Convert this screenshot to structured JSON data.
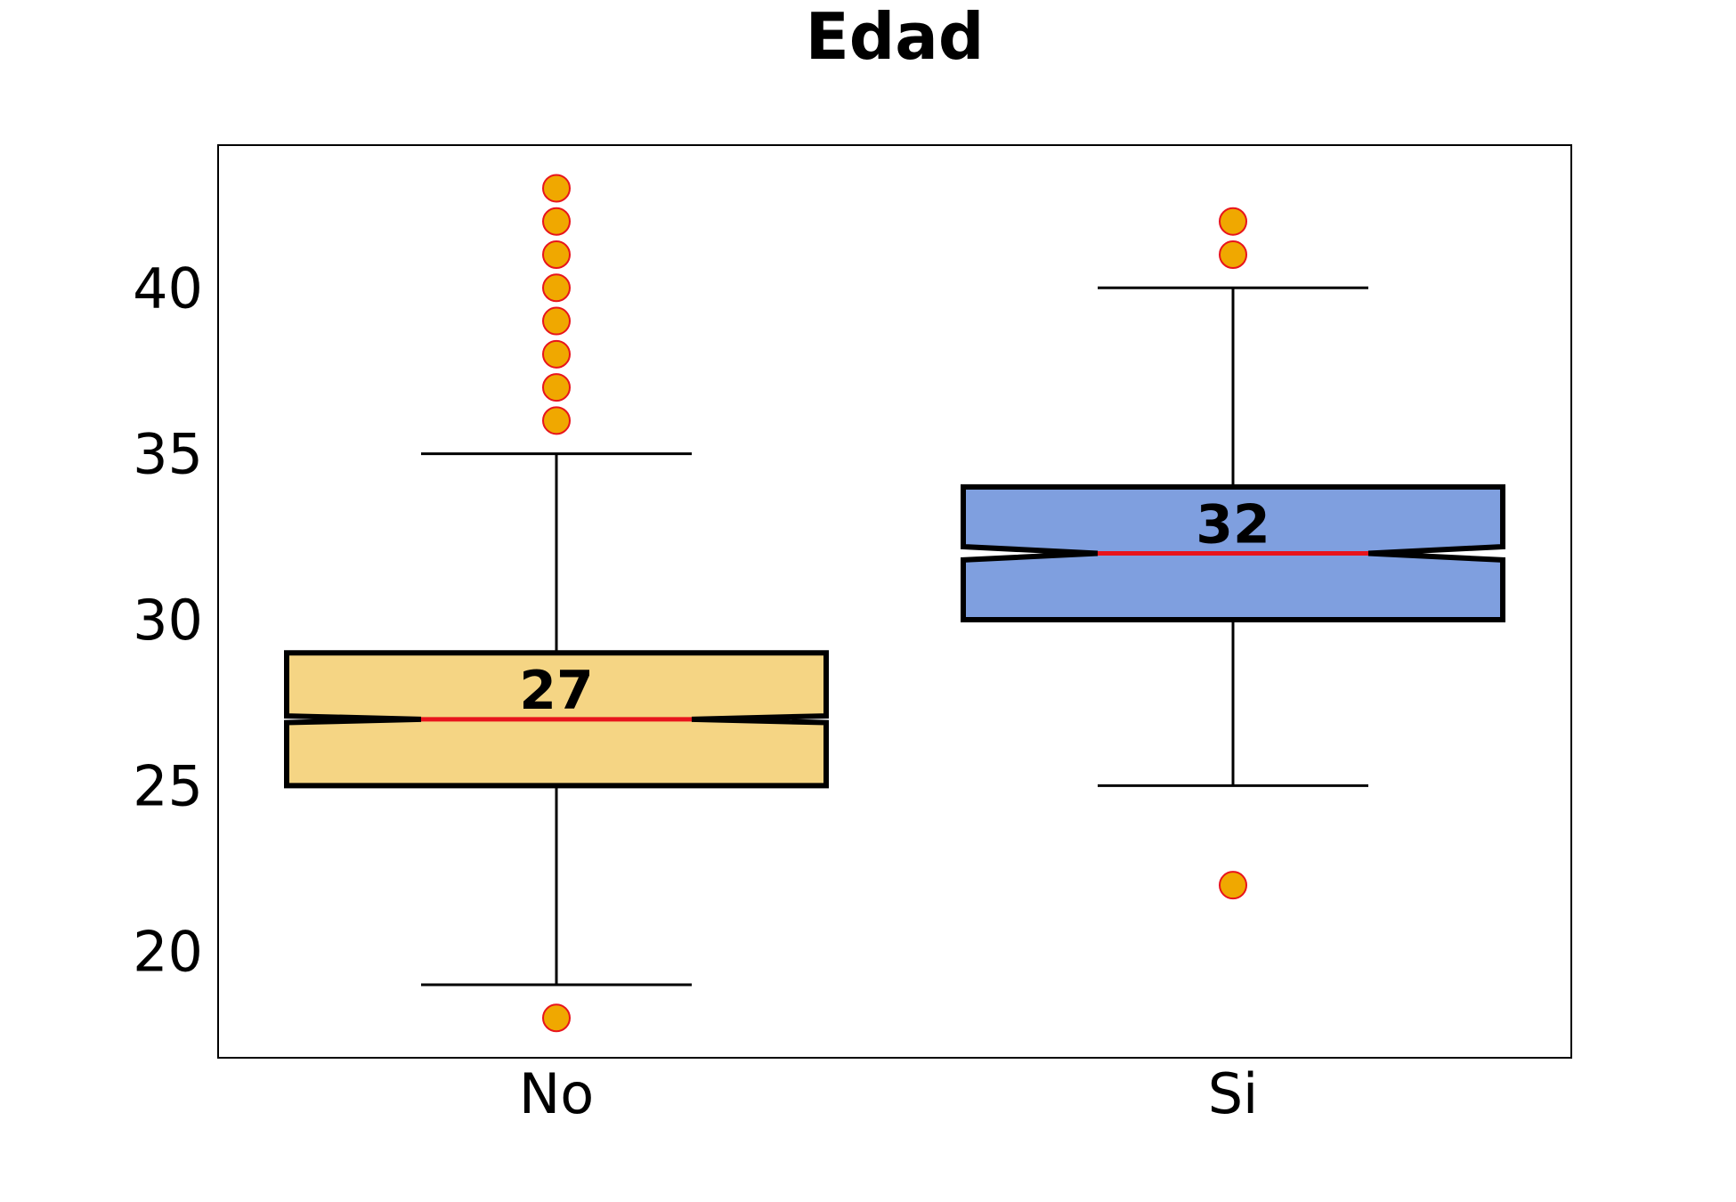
{
  "chart_data": {
    "type": "box",
    "title": "Edad",
    "xlabel": "",
    "ylabel": "",
    "ylim": [
      16.8,
      44.3
    ],
    "yticks": [
      20,
      25,
      30,
      35,
      40
    ],
    "grid": false,
    "notched": true,
    "categories": [
      "No",
      "Si"
    ],
    "series": [
      {
        "category": "No",
        "q1": 25,
        "median": 27,
        "q3": 29,
        "whisker_low": 19,
        "whisker_high": 35,
        "notch_low": 26.9,
        "notch_high": 27.1,
        "outliers": [
          18,
          36,
          37,
          38,
          39,
          40,
          41,
          42,
          43
        ],
        "median_label": "27",
        "fill_color": "#f5d584"
      },
      {
        "category": "Si",
        "q1": 30,
        "median": 32,
        "q3": 34,
        "whisker_low": 25,
        "whisker_high": 40,
        "notch_low": 31.8,
        "notch_high": 32.2,
        "outliers": [
          22,
          41,
          42
        ],
        "median_label": "32",
        "fill_color": "#7f9fdf"
      }
    ],
    "colors": {
      "median_line": "#e8141c",
      "outlier_fill": "#f0a800",
      "outlier_edge": "#e8141c",
      "box_edge": "#000000",
      "whisker": "#000000"
    }
  }
}
